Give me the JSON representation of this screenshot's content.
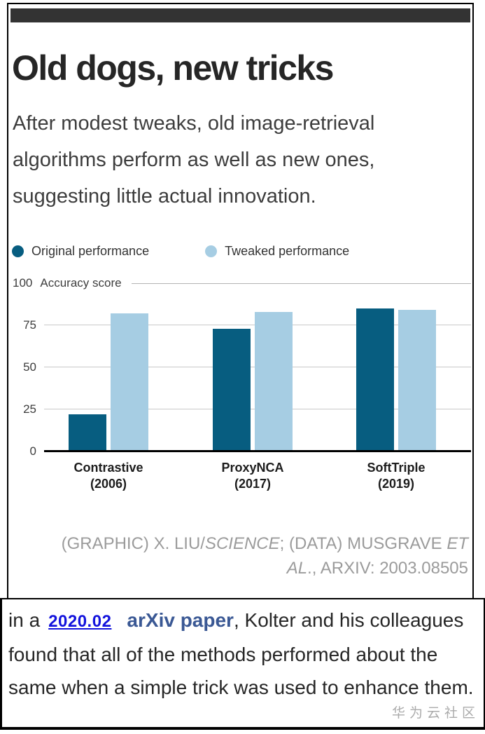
{
  "figure": {
    "title": "Old dogs, new tricks",
    "subtitle": "After modest tweaks, old image-retrieval algorithms perform as well as new ones, suggesting little actual innovation.",
    "credit": {
      "part1": "(GRAPHIC) X. LIU/",
      "italic1": "SCIENCE",
      "part2": "; (DATA) MUSGRAVE ",
      "italic2": "ET AL",
      "part3": "., ARXIV: 2003.08505"
    }
  },
  "chart_data": {
    "type": "bar",
    "title": "Old dogs, new tricks",
    "ylabel": "Accuracy score",
    "ylim": [
      0,
      100
    ],
    "yticks": [
      0,
      25,
      50,
      75,
      100
    ],
    "y_top_label": "100",
    "grid": true,
    "legend_position": "top-left",
    "categories": [
      "Contrastive",
      "ProxyNCA",
      "SoftTriple"
    ],
    "category_years": [
      "(2006)",
      "(2017)",
      "(2019)"
    ],
    "series": [
      {
        "name": "Original performance",
        "color": "#075d80",
        "values": [
          22,
          73,
          85
        ]
      },
      {
        "name": "Tweaked performance",
        "color": "#a6cde3",
        "values": [
          82,
          83,
          84
        ]
      }
    ],
    "baseline_color": "#000000",
    "gridline_color": "#c8c8c8"
  },
  "article": {
    "text_before": "in a",
    "link_date": "2020.02",
    "link_paper": "arXiv paper",
    "text_after": ", Kolter and his colleagues found that all of the methods performed about the same when a simple trick was used to enhance them.",
    "watermark": "华为云社区"
  }
}
